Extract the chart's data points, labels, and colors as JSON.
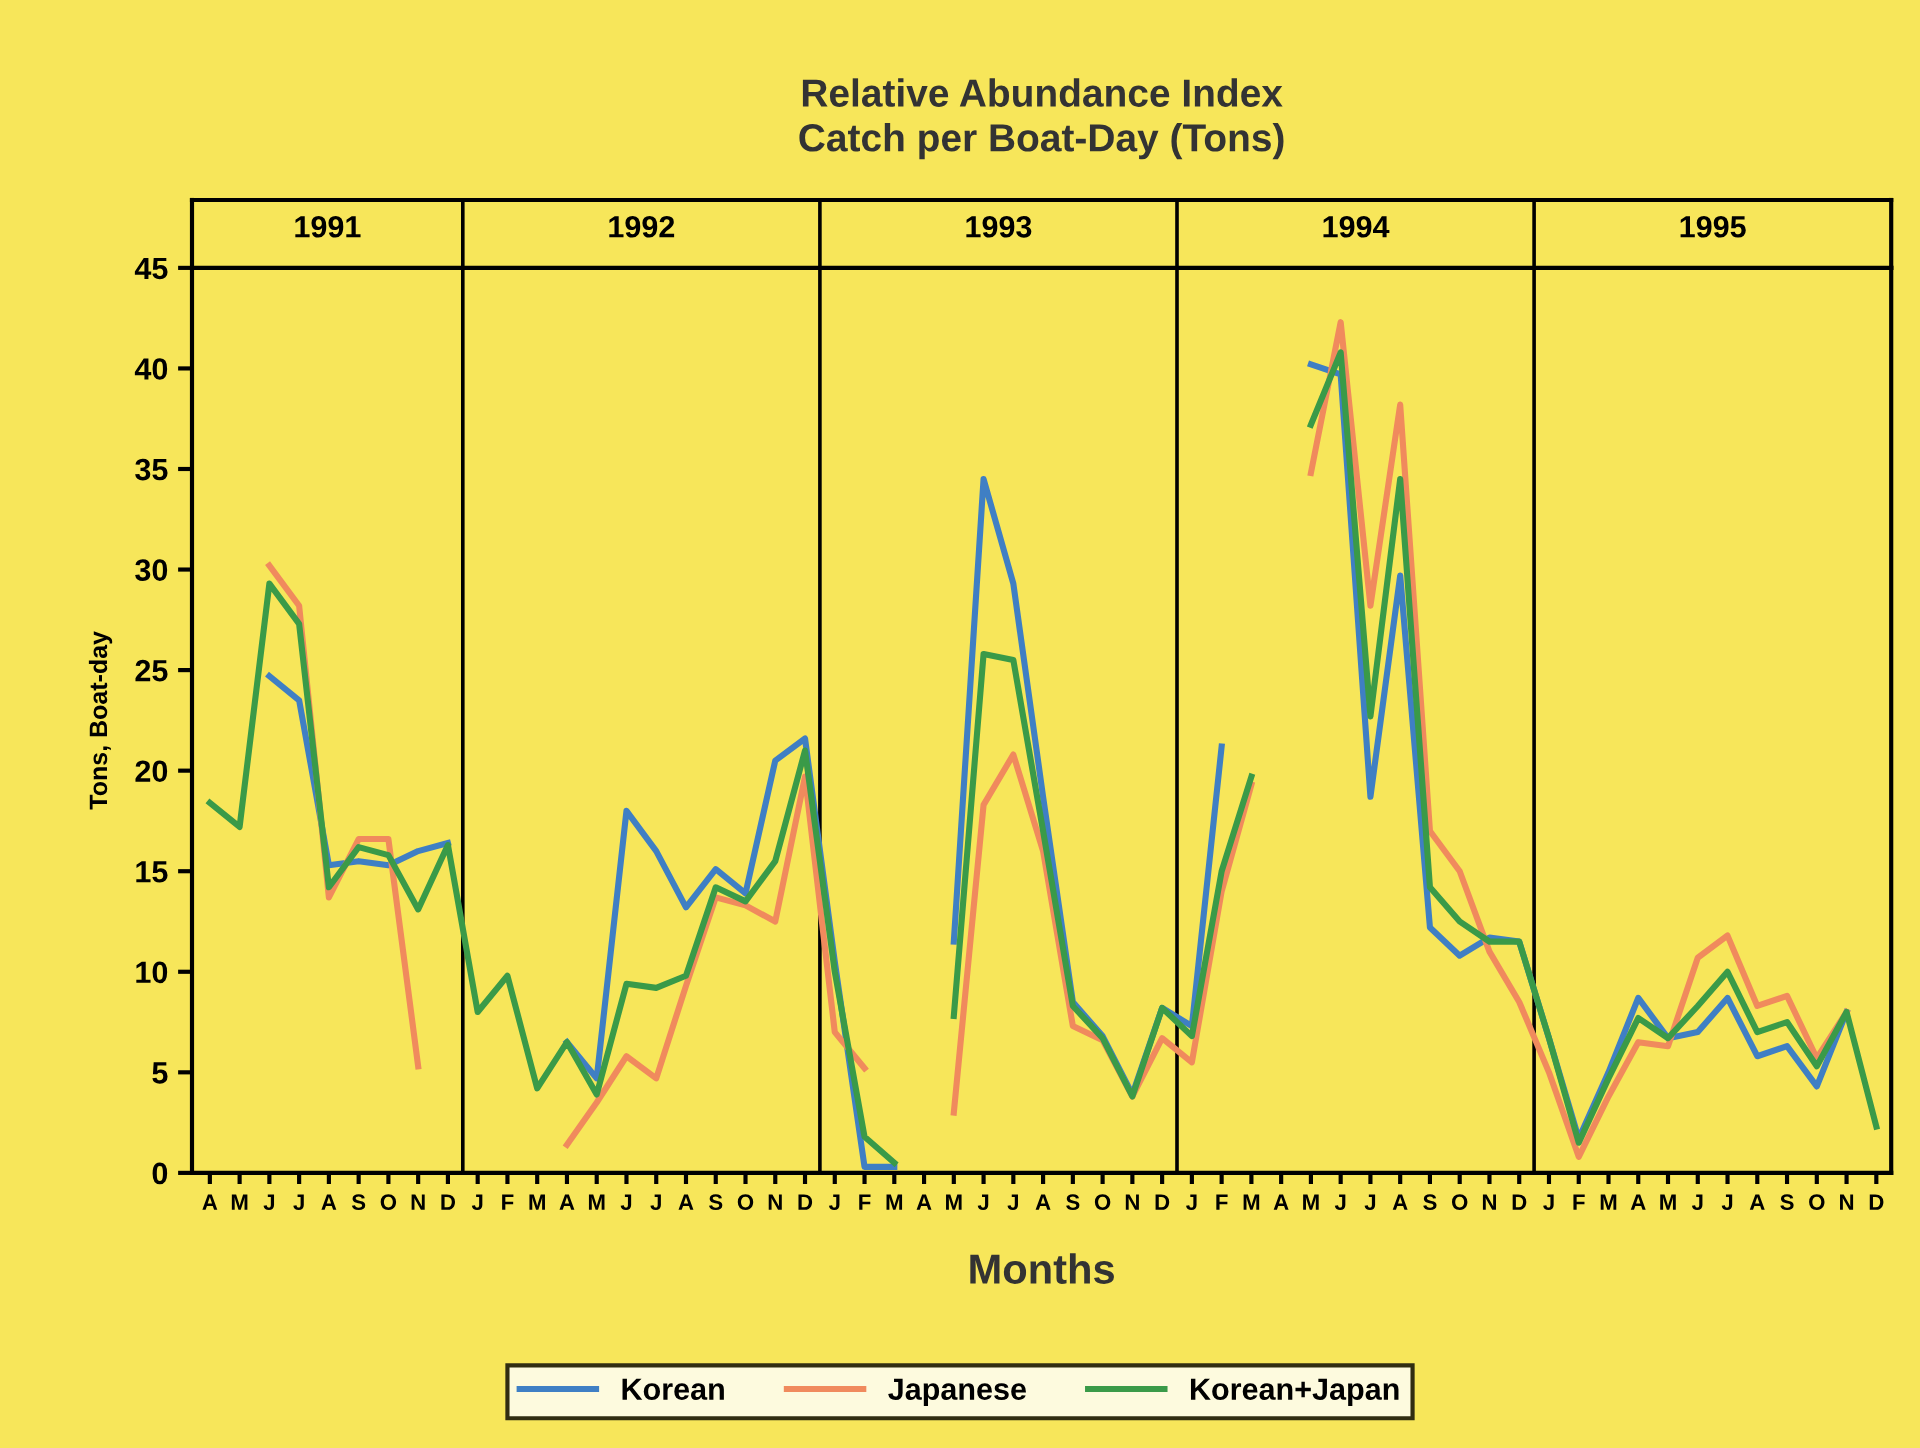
{
  "chart_data": {
    "type": "line",
    "title": "Relative Abundance Index\nCatch per Boat-Day (Tons)",
    "xlabel": "Months",
    "ylabel": "Tons, Boat-day",
    "annotations": [
      "1991",
      "1992",
      "1993",
      "1994",
      "1995"
    ],
    "categories": [
      "A",
      "M",
      "J",
      "J",
      "A",
      "S",
      "O",
      "N",
      "D",
      "J",
      "F",
      "M",
      "A",
      "M",
      "J",
      "J",
      "A",
      "S",
      "O",
      "N",
      "D",
      "J",
      "F",
      "M",
      "A",
      "M",
      "J",
      "J",
      "A",
      "S",
      "O",
      "N",
      "D",
      "J",
      "F",
      "M",
      "A",
      "M",
      "J",
      "J",
      "A",
      "S",
      "O",
      "N",
      "D",
      "J",
      "F",
      "M",
      "A",
      "M",
      "J",
      "J",
      "A",
      "S",
      "O",
      "N",
      "D"
    ],
    "ylim": [
      0,
      45
    ],
    "yticks": [
      0,
      5,
      10,
      15,
      20,
      25,
      30,
      35,
      40,
      45
    ],
    "series": [
      {
        "name": "Korean",
        "color": "#3f7fc4",
        "values": [
          null,
          null,
          24.7,
          23.5,
          15.3,
          15.5,
          15.3,
          16.0,
          16.4,
          null,
          null,
          null,
          6.5,
          4.7,
          18.0,
          16.0,
          13.2,
          15.1,
          13.9,
          20.5,
          21.6,
          10.5,
          0.3,
          0.3,
          null,
          11.5,
          34.5,
          29.3,
          18.7,
          8.5,
          6.8,
          3.9,
          8.2,
          7.3,
          21.2,
          null,
          null,
          40.2,
          39.7,
          18.7,
          29.7,
          12.2,
          10.8,
          11.7,
          11.5,
          6.7,
          1.7,
          5.0,
          8.7,
          6.7,
          7.0,
          8.7,
          5.8,
          6.3,
          4.3,
          8.0,
          null
        ]
      },
      {
        "name": "Japanese",
        "color": "#f08a5d",
        "values": [
          null,
          null,
          30.2,
          28.2,
          13.7,
          16.6,
          16.6,
          5.3,
          null,
          null,
          null,
          null,
          1.4,
          3.5,
          5.8,
          4.7,
          9.3,
          13.7,
          13.3,
          12.5,
          19.7,
          7.0,
          5.2,
          null,
          null,
          3.0,
          18.3,
          20.8,
          16.0,
          7.3,
          6.6,
          3.8,
          6.7,
          5.5,
          14.0,
          19.3,
          null,
          34.8,
          42.3,
          28.2,
          38.2,
          17.0,
          15.0,
          11.0,
          8.5,
          5.0,
          0.8,
          3.8,
          6.5,
          6.3,
          10.7,
          11.8,
          8.3,
          8.8,
          5.7,
          8.0,
          null
        ]
      },
      {
        "name": "Korean+Japan",
        "color": "#3a9a48",
        "values": [
          18.4,
          17.2,
          29.3,
          27.3,
          14.2,
          16.2,
          15.8,
          13.1,
          16.3,
          8.0,
          9.8,
          4.2,
          6.5,
          3.9,
          9.4,
          9.2,
          9.8,
          14.2,
          13.5,
          15.5,
          21.0,
          10.0,
          1.8,
          0.5,
          null,
          7.8,
          25.8,
          25.5,
          17.0,
          8.3,
          6.7,
          3.8,
          8.2,
          6.8,
          15.0,
          19.7,
          null,
          37.2,
          40.8,
          22.7,
          34.5,
          14.2,
          12.5,
          11.5,
          11.5,
          6.7,
          1.5,
          4.7,
          7.7,
          6.7,
          8.3,
          10.0,
          7.0,
          7.5,
          5.3,
          8.0,
          2.3
        ]
      }
    ],
    "legend": "bottom",
    "line_style": "solid"
  }
}
